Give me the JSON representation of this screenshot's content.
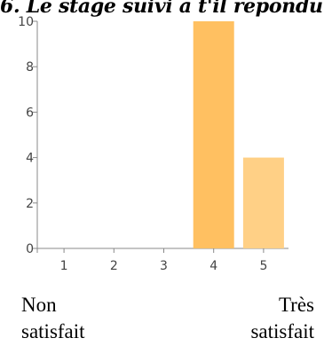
{
  "title": "6. Le stage suivi a t'il répondu",
  "scale_labels": {
    "low_line1": "Non",
    "low_line2": "satisfait",
    "high_line1": "Très",
    "high_line2": "satisfait"
  },
  "colors": {
    "axis": "#888888",
    "bar_4": "#FFC061",
    "bar_5": "#FFD086"
  },
  "chart_data": {
    "type": "bar",
    "categories": [
      "1",
      "2",
      "3",
      "4",
      "5"
    ],
    "values": [
      0,
      0,
      0,
      10,
      4
    ],
    "y_ticks": [
      0,
      2,
      4,
      6,
      8,
      10
    ],
    "ylim": [
      0,
      10
    ],
    "grid": false,
    "legend": "none"
  }
}
